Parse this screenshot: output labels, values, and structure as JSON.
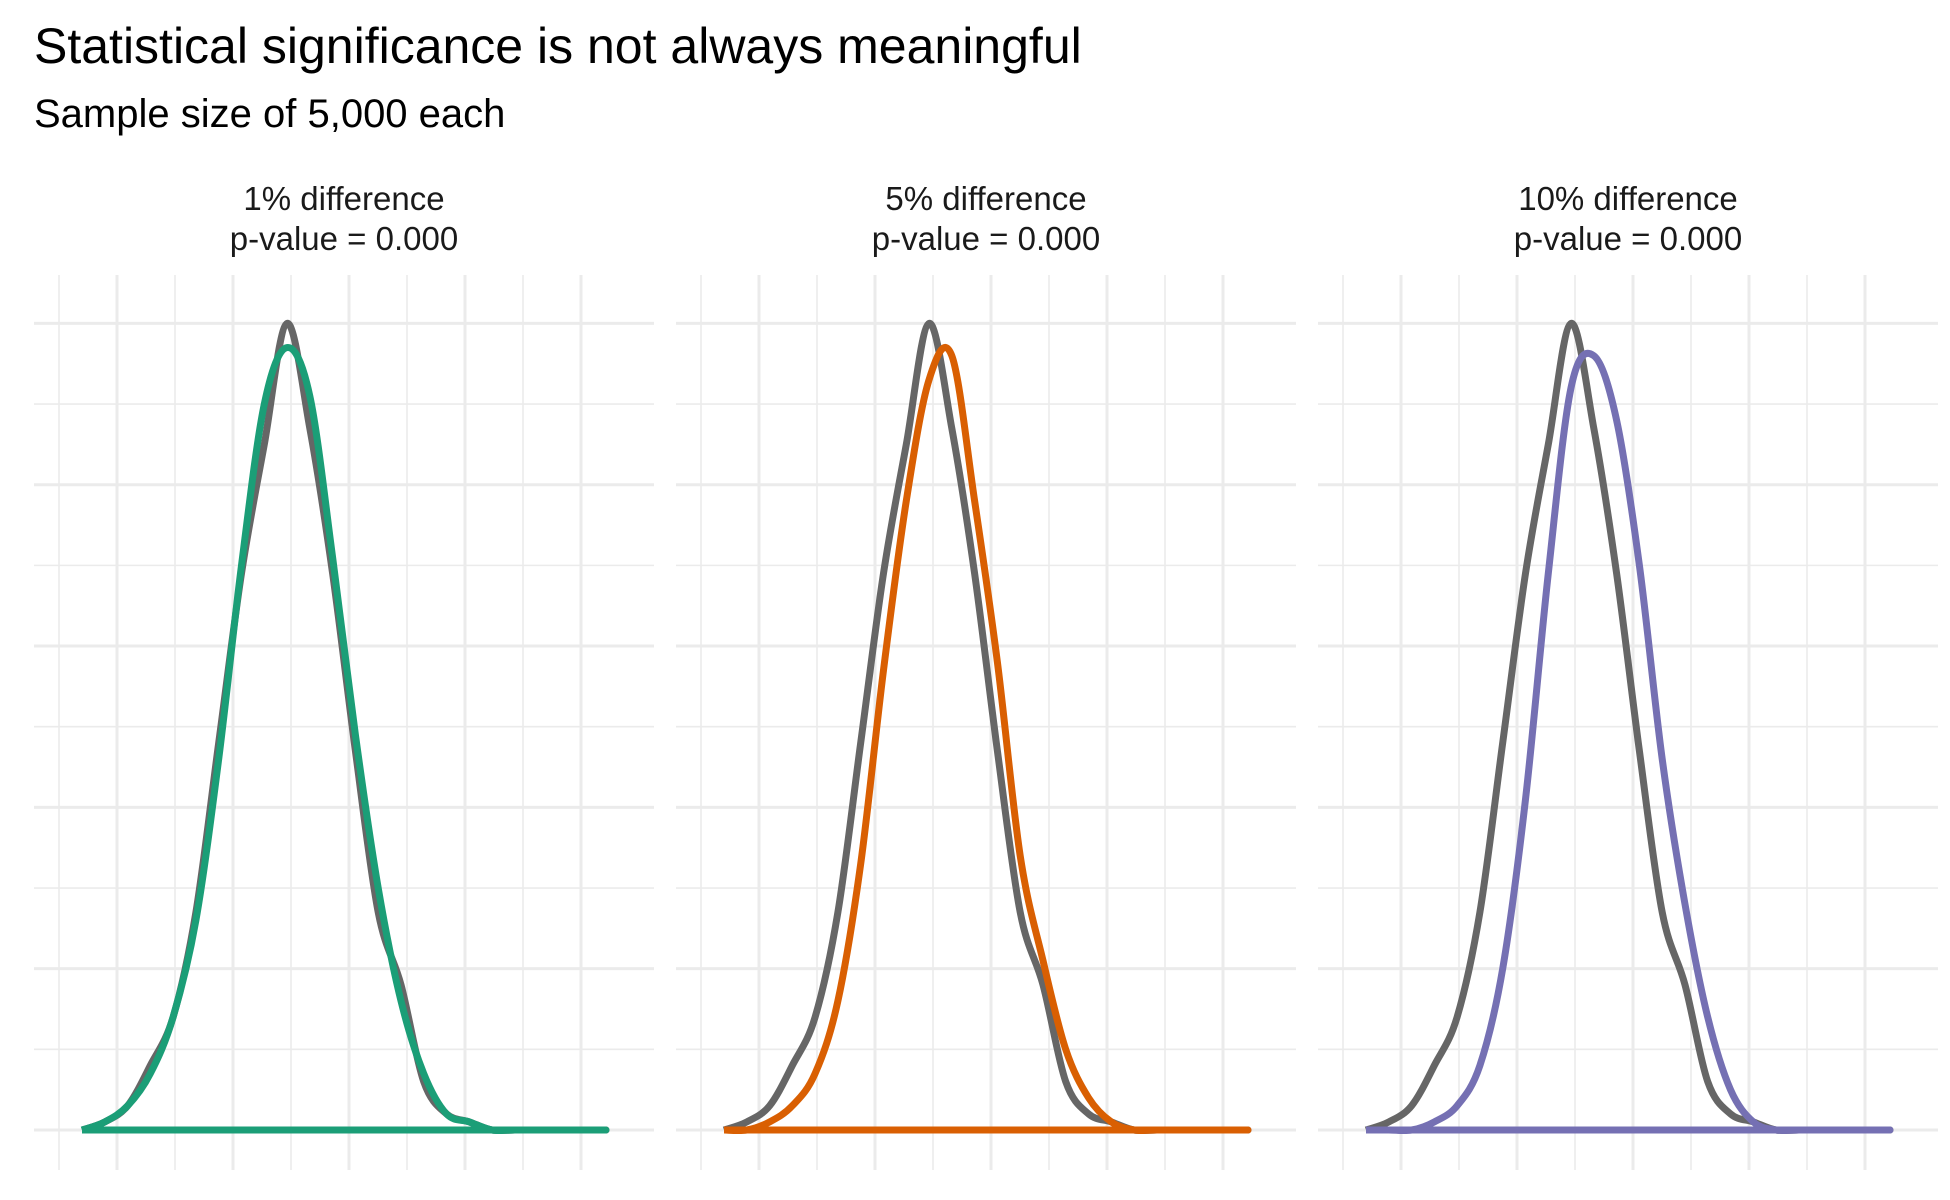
{
  "title": "Statistical significance is not always meaningful",
  "subtitle": "Sample size of 5,000 each",
  "chart_data": {
    "type": "area",
    "grid": true,
    "axis_labels_shown": false,
    "baseline_color": "#666666",
    "x": [
      -2.7,
      -2.4,
      -2.1,
      -1.8,
      -1.5,
      -1.2,
      -0.9,
      -0.6,
      -0.3,
      0.0,
      0.3,
      0.6,
      0.9,
      1.2,
      1.5,
      1.8,
      2.1,
      2.4,
      2.7,
      3.0,
      3.3,
      3.6,
      3.9,
      4.2
    ],
    "baseline": [
      0.0,
      0.01,
      0.03,
      0.08,
      0.14,
      0.27,
      0.48,
      0.69,
      0.85,
      1.0,
      0.87,
      0.69,
      0.47,
      0.27,
      0.18,
      0.06,
      0.02,
      0.01,
      0.0,
      0.0,
      0.0,
      0.0,
      0.0,
      0.0
    ],
    "panels": [
      {
        "title": "1% difference",
        "pvalue_label": "p-value = 0.000",
        "color": "#1b9e77",
        "values": [
          0.0,
          0.01,
          0.03,
          0.07,
          0.14,
          0.26,
          0.46,
          0.7,
          0.9,
          0.97,
          0.91,
          0.71,
          0.49,
          0.3,
          0.16,
          0.07,
          0.02,
          0.01,
          0.0,
          0.0,
          0.0,
          0.0,
          0.0,
          0.0
        ]
      },
      {
        "title": "5% difference",
        "pvalue_label": "p-value = 0.000",
        "color": "#d95f02",
        "values": [
          0.0,
          0.0,
          0.01,
          0.03,
          0.07,
          0.16,
          0.33,
          0.57,
          0.78,
          0.93,
          0.96,
          0.78,
          0.58,
          0.34,
          0.21,
          0.1,
          0.04,
          0.01,
          0.0,
          0.0,
          0.0,
          0.0,
          0.0,
          0.0
        ]
      },
      {
        "title": "10% difference",
        "pvalue_label": "p-value = 0.000",
        "color": "#7570b3",
        "values": [
          0.0,
          0.0,
          0.0,
          0.01,
          0.03,
          0.08,
          0.2,
          0.41,
          0.69,
          0.92,
          0.96,
          0.88,
          0.7,
          0.46,
          0.28,
          0.14,
          0.05,
          0.01,
          0.0,
          0.0,
          0.0,
          0.0,
          0.0,
          0.0
        ]
      }
    ]
  }
}
